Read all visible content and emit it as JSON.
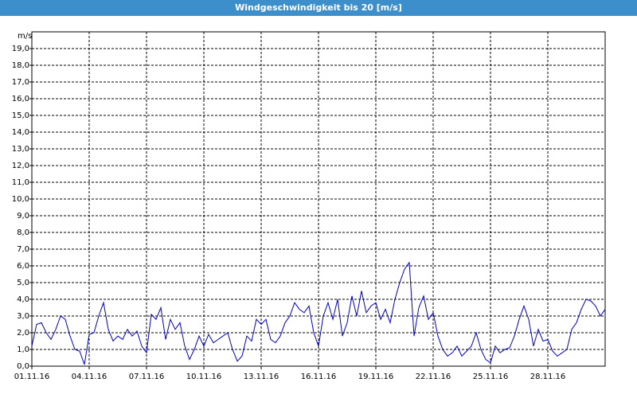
{
  "chart_data": {
    "type": "line",
    "title": "Windgeschwindigkeit bis 20 [m/s]",
    "ylabel": "m/s",
    "x": [
      0,
      0.25,
      0.5,
      0.75,
      1,
      1.25,
      1.5,
      1.75,
      2,
      2.25,
      2.5,
      2.75,
      3,
      3.25,
      3.5,
      3.75,
      4,
      4.25,
      4.5,
      4.75,
      5,
      5.25,
      5.5,
      5.75,
      6,
      6.25,
      6.5,
      6.75,
      7,
      7.25,
      7.5,
      7.75,
      8,
      8.25,
      8.5,
      8.75,
      9,
      9.25,
      9.5,
      9.75,
      10,
      10.25,
      10.5,
      10.75,
      11,
      11.25,
      11.5,
      11.75,
      12,
      12.25,
      12.5,
      12.75,
      13,
      13.25,
      13.5,
      13.75,
      14,
      14.25,
      14.5,
      14.75,
      15,
      15.25,
      15.5,
      15.75,
      16,
      16.25,
      16.5,
      16.75,
      17,
      17.25,
      17.5,
      17.75,
      18,
      18.25,
      18.5,
      18.75,
      19,
      19.25,
      19.5,
      19.75,
      20,
      20.25,
      20.5,
      20.75,
      21,
      21.25,
      21.5,
      21.75,
      22,
      22.25,
      22.5,
      22.75,
      23,
      23.25,
      23.5,
      23.75,
      24,
      24.25,
      24.5,
      24.75,
      25,
      25.25,
      25.5,
      25.75,
      26,
      26.25,
      26.5,
      26.75,
      27,
      27.25,
      27.5,
      27.75,
      28,
      28.25,
      28.5,
      28.75,
      29,
      29.25,
      29.5,
      29.75,
      30
    ],
    "series": [
      {
        "name": "Windgeschwindigkeit",
        "color": "#0000cc",
        "values": [
          1.2,
          2.5,
          2.6,
          2.0,
          1.6,
          2.2,
          3.0,
          2.8,
          1.8,
          1.0,
          0.9,
          0.1,
          1.9,
          2.0,
          3.0,
          3.8,
          2.2,
          1.5,
          1.8,
          1.6,
          2.2,
          1.8,
          2.1,
          1.2,
          0.8,
          3.1,
          2.8,
          3.5,
          1.6,
          2.8,
          2.2,
          2.6,
          1.2,
          0.4,
          1.0,
          1.8,
          1.2,
          1.9,
          1.4,
          1.6,
          1.8,
          2.0,
          1.0,
          0.3,
          0.6,
          1.8,
          1.5,
          2.8,
          2.5,
          2.8,
          1.6,
          1.4,
          1.8,
          2.6,
          3.0,
          3.8,
          3.4,
          3.2,
          3.6,
          2.0,
          1.2,
          3.0,
          3.8,
          2.8,
          4.0,
          1.8,
          2.6,
          4.2,
          3.0,
          4.5,
          3.2,
          3.6,
          3.8,
          2.8,
          3.4,
          2.6,
          4.0,
          5.0,
          5.8,
          6.2,
          1.8,
          3.5,
          4.2,
          2.8,
          3.2,
          1.8,
          1.0,
          0.6,
          0.8,
          1.2,
          0.6,
          0.9,
          1.2,
          2.0,
          1.0,
          0.4,
          0.2,
          1.2,
          0.8,
          1.0,
          1.1,
          1.8,
          2.8,
          3.6,
          2.8,
          1.2,
          2.2,
          1.5,
          1.6,
          0.9,
          0.6,
          0.8,
          1.0,
          2.2,
          2.6,
          3.4,
          4.0,
          3.9,
          3.6,
          3.0,
          3.4
        ]
      }
    ],
    "xlim": [
      0,
      30
    ],
    "xticks": [
      {
        "value": 0,
        "label": "01.11.16"
      },
      {
        "value": 3,
        "label": "04.11.16"
      },
      {
        "value": 6,
        "label": "07.11.16"
      },
      {
        "value": 9,
        "label": "10.11.16"
      },
      {
        "value": 12,
        "label": "13.11.16"
      },
      {
        "value": 15,
        "label": "16.11.16"
      },
      {
        "value": 18,
        "label": "19.11.16"
      },
      {
        "value": 21,
        "label": "22.11.16"
      },
      {
        "value": 24,
        "label": "25.11.16"
      },
      {
        "value": 27,
        "label": "28.11.16"
      }
    ],
    "ylim": [
      0,
      20
    ],
    "yticks": [
      {
        "value": 0,
        "label": "0,0"
      },
      {
        "value": 1,
        "label": "1,0"
      },
      {
        "value": 2,
        "label": "2,0"
      },
      {
        "value": 3,
        "label": "3,0"
      },
      {
        "value": 4,
        "label": "4,0"
      },
      {
        "value": 5,
        "label": "5,0"
      },
      {
        "value": 6,
        "label": "6,0"
      },
      {
        "value": 7,
        "label": "7,0"
      },
      {
        "value": 8,
        "label": "8,0"
      },
      {
        "value": 9,
        "label": "9,0"
      },
      {
        "value": 10,
        "label": "10,0"
      },
      {
        "value": 11,
        "label": "11,0"
      },
      {
        "value": 12,
        "label": "12,0"
      },
      {
        "value": 13,
        "label": "13,0"
      },
      {
        "value": 14,
        "label": "14,0"
      },
      {
        "value": 15,
        "label": "15,0"
      },
      {
        "value": 16,
        "label": "16,0"
      },
      {
        "value": 17,
        "label": "17,0"
      },
      {
        "value": 18,
        "label": "18,0"
      },
      {
        "value": 19,
        "label": "19,0"
      }
    ],
    "grid": true
  }
}
